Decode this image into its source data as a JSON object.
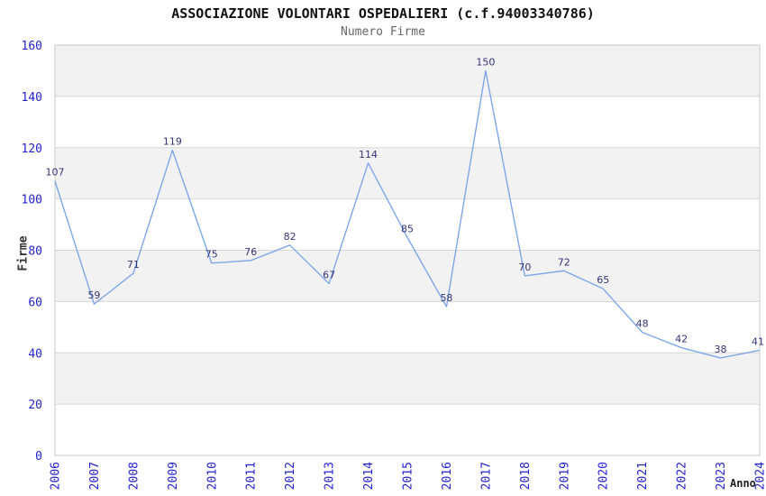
{
  "chart_data": {
    "type": "line",
    "title": "ASSOCIAZIONE VOLONTARI OSPEDALIERI (c.f.94003340786)",
    "subtitle": "Numero Firme",
    "xlabel": "Anno",
    "ylabel": "Firme",
    "x": [
      "2006",
      "2007",
      "2008",
      "2009",
      "2010",
      "2011",
      "2012",
      "2013",
      "2014",
      "2015",
      "2016",
      "2017",
      "2018",
      "2019",
      "2020",
      "2021",
      "2022",
      "2023",
      "2024"
    ],
    "series": [
      {
        "name": "Numero Firme",
        "values": [
          107,
          59,
          71,
          119,
          75,
          76,
          82,
          67,
          114,
          85,
          58,
          150,
          70,
          72,
          65,
          48,
          42,
          38,
          41
        ]
      }
    ],
    "ylim": [
      0,
      160
    ],
    "ytick_step": 20,
    "yticks": [
      0,
      20,
      40,
      60,
      80,
      100,
      120,
      140,
      160
    ],
    "grid": "horizontal alternating bands, gray band at top (140-160), gridline every 20",
    "legend": "none",
    "markers": "none",
    "data_labels": "above each point",
    "colors": {
      "line": "#7da7e8",
      "tick_labels": "#2222cc",
      "data_labels": "#333377",
      "band_gray": "#f2f2f2",
      "band_white": "#ffffff",
      "gridline": "#d8d8d8",
      "plot_border": "#c8c8c8",
      "title": "#111111",
      "subtitle": "#666666",
      "axis_title": "#333333"
    }
  }
}
